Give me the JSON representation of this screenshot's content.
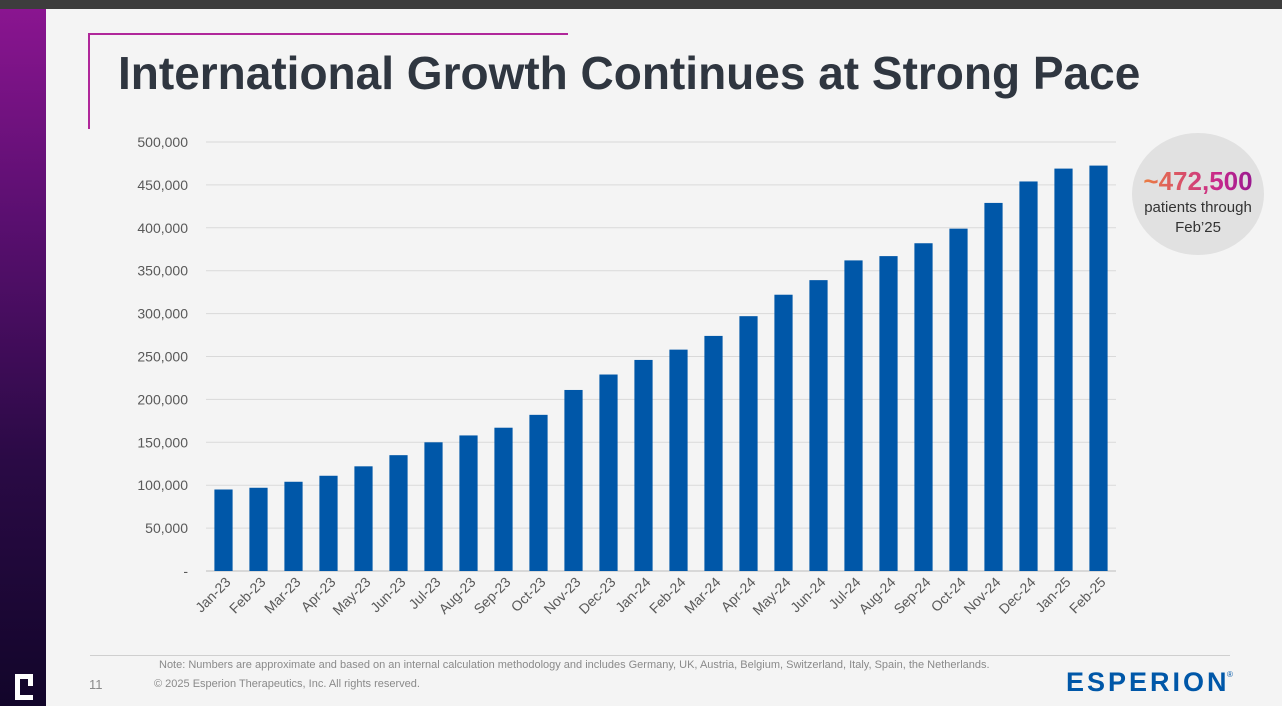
{
  "slide": {
    "title": "International Growth Continues at Strong Pace",
    "callout_value": "~472,500",
    "callout_line1": "patients through",
    "callout_line2": "Feb’25",
    "note": "Note: Numbers are approximate and based on an internal calculation methodology and includes Germany, UK, Austria, Belgium, Switzerland, Italy, Spain, the Netherlands.",
    "page_number": "11",
    "copyright": "© 2025 Esperion Therapeutics, Inc. All rights reserved.",
    "brand": "ESPERION",
    "brand_mark": "®"
  },
  "colors": {
    "bar": "#0057a8",
    "accent": "#b0279a",
    "title": "#2f3640"
  },
  "chart_data": {
    "type": "bar",
    "title": "",
    "xlabel": "",
    "ylabel": "",
    "ylim": [
      0,
      500000
    ],
    "yticks": [
      0,
      50000,
      100000,
      150000,
      200000,
      250000,
      300000,
      350000,
      400000,
      450000,
      500000
    ],
    "ytick_labels": [
      "-",
      "50,000",
      "100,000",
      "150,000",
      "200,000",
      "250,000",
      "300,000",
      "350,000",
      "400,000",
      "450,000",
      "500,000"
    ],
    "grid": true,
    "legend": "none",
    "categories": [
      "Jan-23",
      "Feb-23",
      "Mar-23",
      "Apr-23",
      "May-23",
      "Jun-23",
      "Jul-23",
      "Aug-23",
      "Sep-23",
      "Oct-23",
      "Nov-23",
      "Dec-23",
      "Jan-24",
      "Feb-24",
      "Mar-24",
      "Apr-24",
      "May-24",
      "Jun-24",
      "Jul-24",
      "Aug-24",
      "Sep-24",
      "Oct-24",
      "Nov-24",
      "Dec-24",
      "Jan-25",
      "Feb-25"
    ],
    "values": [
      95000,
      97000,
      104000,
      111000,
      122000,
      135000,
      150000,
      158000,
      167000,
      182000,
      211000,
      229000,
      246000,
      258000,
      274000,
      297000,
      322000,
      339000,
      362000,
      367000,
      382000,
      399000,
      429000,
      454000,
      469000,
      472500
    ]
  }
}
